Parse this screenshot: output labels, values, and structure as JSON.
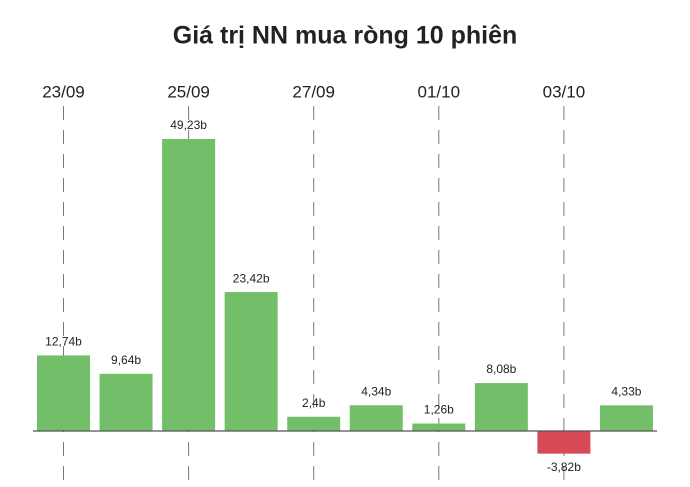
{
  "chart_data": {
    "type": "bar",
    "title": "Giá trị NN mua ròng 10 phiên",
    "categories": [
      "23/09",
      null,
      "25/09",
      null,
      "27/09",
      null,
      "01/10",
      null,
      "03/10",
      null
    ],
    "values": [
      12.74,
      9.64,
      49.23,
      23.42,
      2.4,
      4.34,
      1.26,
      8.08,
      -3.82,
      4.33
    ],
    "value_labels": [
      "12,74b",
      "9,64b",
      "49,23b",
      "23,42b",
      "2,4b",
      "4,34b",
      "1,26b",
      "8,08b",
      "-3,82b",
      "4,33b"
    ],
    "color": "#73bf69",
    "negative_color": "#d64a58"
  }
}
